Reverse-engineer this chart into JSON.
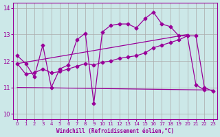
{
  "xlabel": "Windchill (Refroidissement éolien,°C)",
  "bg_color": "#cce8e8",
  "line_color": "#990099",
  "grid_color": "#aaaaaa",
  "ylim": [
    9.8,
    14.2
  ],
  "xlim": [
    -0.5,
    23.5
  ],
  "yticks": [
    10,
    11,
    12,
    13,
    14
  ],
  "xticks": [
    0,
    1,
    2,
    3,
    4,
    5,
    6,
    7,
    8,
    9,
    10,
    11,
    12,
    13,
    14,
    15,
    16,
    17,
    18,
    19,
    20,
    21,
    22,
    23
  ],
  "series1_x": [
    0,
    1,
    2,
    3,
    4,
    5,
    6,
    7,
    8,
    9,
    10,
    11,
    12,
    13,
    14,
    15,
    16,
    17,
    18,
    19,
    20,
    21,
    22
  ],
  "series1_y": [
    12.2,
    11.9,
    11.4,
    12.6,
    11.0,
    11.7,
    11.85,
    12.8,
    13.05,
    10.4,
    13.1,
    13.35,
    13.4,
    13.4,
    13.25,
    13.6,
    13.85,
    13.4,
    13.3,
    12.95,
    12.95,
    11.1,
    10.9
  ],
  "series2_x": [
    0,
    1,
    2,
    3,
    4,
    5,
    6,
    7,
    8,
    9,
    10,
    11,
    12,
    13,
    14,
    15,
    16,
    17,
    18,
    19,
    20,
    21,
    22,
    23
  ],
  "series2_y": [
    11.9,
    11.5,
    11.55,
    11.7,
    11.55,
    11.6,
    11.7,
    11.8,
    11.9,
    11.85,
    11.95,
    12.0,
    12.1,
    12.15,
    12.2,
    12.3,
    12.5,
    12.6,
    12.7,
    12.8,
    12.95,
    12.95,
    11.0,
    10.85
  ],
  "series3_x": [
    0,
    23
  ],
  "series3_y": [
    11.0,
    10.9
  ],
  "series4_x": [
    0,
    20
  ],
  "series4_y": [
    11.9,
    13.0
  ]
}
